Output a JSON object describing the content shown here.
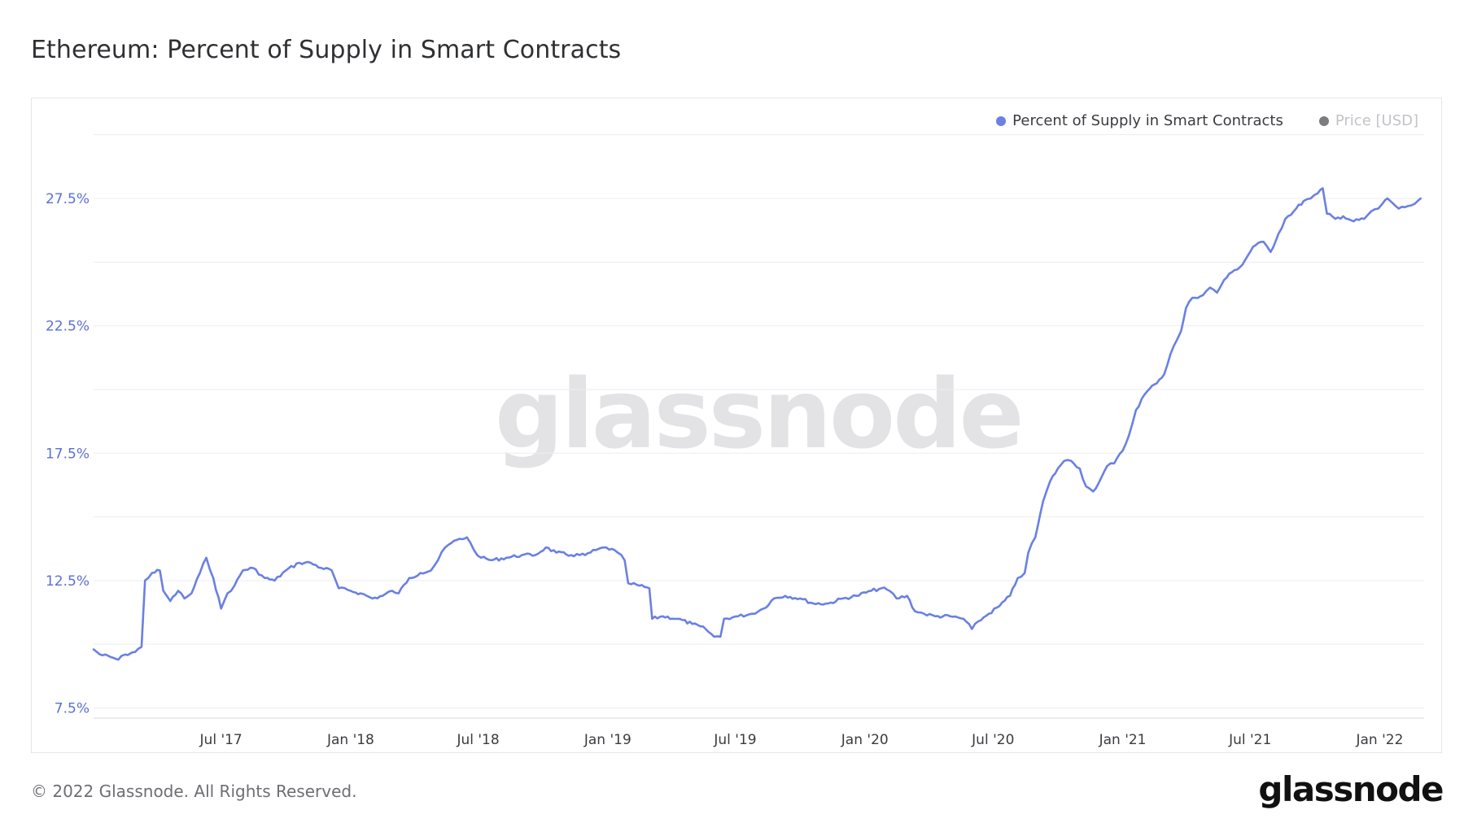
{
  "title": "Ethereum: Percent of Supply in Smart Contracts",
  "legend": {
    "series_a": "Percent of Supply in Smart Contracts",
    "series_b": "Price [USD]"
  },
  "colors": {
    "series_a": "#6a80e2",
    "series_b": "#7c7c80",
    "grid": "#ededf0"
  },
  "footer": "© 2022 Glassnode. All Rights Reserved.",
  "brand": "glassnode",
  "watermark": "glassnode",
  "chart_data": {
    "type": "line",
    "title": "Ethereum: Percent of Supply in Smart Contracts",
    "xlabel": "",
    "ylabel": "",
    "y_ticks": [
      "7.5%",
      "12.5%",
      "17.5%",
      "22.5%",
      "27.5%"
    ],
    "x_ticks": [
      "Jul '17",
      "Jan '18",
      "Jul '18",
      "Jan '19",
      "Jul '19",
      "Jan '20",
      "Jul '20",
      "Jan '21",
      "Jul '21",
      "Jan '22"
    ],
    "ylim": [
      7.2,
      30.5
    ],
    "xlim": [
      "2017-01-01",
      "2022-03-05"
    ],
    "grid": true,
    "legend_position": "top-right",
    "series": [
      {
        "name": "Percent of Supply in Smart Contracts",
        "color": "#6a80e2",
        "points": [
          [
            "2017-01-01",
            9.8
          ],
          [
            "2017-01-10",
            9.6
          ],
          [
            "2017-01-25",
            9.5
          ],
          [
            "2017-02-05",
            9.4
          ],
          [
            "2017-02-15",
            9.6
          ],
          [
            "2017-03-01",
            9.7
          ],
          [
            "2017-03-10",
            9.9
          ],
          [
            "2017-03-15",
            12.5
          ],
          [
            "2017-03-25",
            12.8
          ],
          [
            "2017-04-05",
            12.9
          ],
          [
            "2017-04-10",
            12.1
          ],
          [
            "2017-04-20",
            11.7
          ],
          [
            "2017-05-01",
            12.1
          ],
          [
            "2017-05-10",
            11.8
          ],
          [
            "2017-05-20",
            12.0
          ],
          [
            "2017-06-01",
            12.8
          ],
          [
            "2017-06-10",
            13.4
          ],
          [
            "2017-06-20",
            12.6
          ],
          [
            "2017-07-01",
            11.4
          ],
          [
            "2017-07-10",
            12.0
          ],
          [
            "2017-07-20",
            12.3
          ],
          [
            "2017-08-01",
            12.9
          ],
          [
            "2017-08-15",
            13.0
          ],
          [
            "2017-09-01",
            12.6
          ],
          [
            "2017-09-15",
            12.5
          ],
          [
            "2017-10-01",
            12.9
          ],
          [
            "2017-10-20",
            13.2
          ],
          [
            "2017-11-05",
            13.2
          ],
          [
            "2017-11-20",
            13.0
          ],
          [
            "2017-12-05",
            12.9
          ],
          [
            "2017-12-15",
            12.2
          ],
          [
            "2018-01-01",
            12.1
          ],
          [
            "2018-01-15",
            12.0
          ],
          [
            "2018-02-01",
            11.8
          ],
          [
            "2018-02-15",
            11.9
          ],
          [
            "2018-03-01",
            12.1
          ],
          [
            "2018-03-10",
            12.0
          ],
          [
            "2018-03-25",
            12.6
          ],
          [
            "2018-04-10",
            12.8
          ],
          [
            "2018-04-25",
            12.9
          ],
          [
            "2018-05-05",
            13.3
          ],
          [
            "2018-05-15",
            13.8
          ],
          [
            "2018-06-01",
            14.1
          ],
          [
            "2018-06-15",
            14.2
          ],
          [
            "2018-06-25",
            13.7
          ],
          [
            "2018-07-05",
            13.4
          ],
          [
            "2018-07-20",
            13.3
          ],
          [
            "2018-08-10",
            13.4
          ],
          [
            "2018-09-01",
            13.5
          ],
          [
            "2018-09-20",
            13.5
          ],
          [
            "2018-10-05",
            13.8
          ],
          [
            "2018-10-20",
            13.6
          ],
          [
            "2018-11-10",
            13.5
          ],
          [
            "2018-11-30",
            13.5
          ],
          [
            "2018-12-15",
            13.7
          ],
          [
            "2018-12-30",
            13.8
          ],
          [
            "2019-01-15",
            13.6
          ],
          [
            "2019-01-25",
            13.3
          ],
          [
            "2019-01-30",
            12.4
          ],
          [
            "2019-02-15",
            12.3
          ],
          [
            "2019-03-01",
            12.2
          ],
          [
            "2019-03-05",
            11.0
          ],
          [
            "2019-03-20",
            11.1
          ],
          [
            "2019-04-10",
            11.0
          ],
          [
            "2019-05-01",
            10.8
          ],
          [
            "2019-05-20",
            10.6
          ],
          [
            "2019-06-01",
            10.3
          ],
          [
            "2019-06-10",
            10.3
          ],
          [
            "2019-06-15",
            11.0
          ],
          [
            "2019-07-05",
            11.1
          ],
          [
            "2019-07-25",
            11.2
          ],
          [
            "2019-08-10",
            11.4
          ],
          [
            "2019-08-25",
            11.8
          ],
          [
            "2019-09-10",
            11.9
          ],
          [
            "2019-10-01",
            11.8
          ],
          [
            "2019-10-20",
            11.6
          ],
          [
            "2019-11-10",
            11.6
          ],
          [
            "2019-12-01",
            11.8
          ],
          [
            "2019-12-20",
            11.9
          ],
          [
            "2020-01-10",
            12.1
          ],
          [
            "2020-01-25",
            12.2
          ],
          [
            "2020-02-05",
            12.1
          ],
          [
            "2020-02-15",
            11.8
          ],
          [
            "2020-03-01",
            11.9
          ],
          [
            "2020-03-12",
            11.3
          ],
          [
            "2020-03-25",
            11.2
          ],
          [
            "2020-04-10",
            11.1
          ],
          [
            "2020-05-01",
            11.1
          ],
          [
            "2020-05-20",
            11.0
          ],
          [
            "2020-06-01",
            10.6
          ],
          [
            "2020-06-10",
            10.9
          ],
          [
            "2020-06-25",
            11.2
          ],
          [
            "2020-07-10",
            11.5
          ],
          [
            "2020-07-25",
            11.9
          ],
          [
            "2020-08-05",
            12.6
          ],
          [
            "2020-08-15",
            12.8
          ],
          [
            "2020-08-20",
            13.6
          ],
          [
            "2020-08-30",
            14.2
          ],
          [
            "2020-09-10",
            15.6
          ],
          [
            "2020-09-20",
            16.4
          ],
          [
            "2020-10-01",
            16.9
          ],
          [
            "2020-10-10",
            17.2
          ],
          [
            "2020-10-20",
            17.2
          ],
          [
            "2020-11-01",
            16.9
          ],
          [
            "2020-11-10",
            16.2
          ],
          [
            "2020-11-20",
            16.0
          ],
          [
            "2020-12-01",
            16.5
          ],
          [
            "2020-12-10",
            17.0
          ],
          [
            "2020-12-20",
            17.1
          ],
          [
            "2021-01-01",
            17.6
          ],
          [
            "2021-01-10",
            18.2
          ],
          [
            "2021-01-20",
            19.2
          ],
          [
            "2021-02-01",
            19.8
          ],
          [
            "2021-02-15",
            20.2
          ],
          [
            "2021-03-01",
            20.6
          ],
          [
            "2021-03-10",
            21.4
          ],
          [
            "2021-03-20",
            22.0
          ],
          [
            "2021-03-25",
            22.3
          ],
          [
            "2021-04-01",
            23.2
          ],
          [
            "2021-04-10",
            23.6
          ],
          [
            "2021-04-25",
            23.7
          ],
          [
            "2021-05-05",
            24.0
          ],
          [
            "2021-05-15",
            23.8
          ],
          [
            "2021-05-25",
            24.3
          ],
          [
            "2021-06-05",
            24.6
          ],
          [
            "2021-06-20",
            24.9
          ],
          [
            "2021-07-05",
            25.6
          ],
          [
            "2021-07-20",
            25.8
          ],
          [
            "2021-07-30",
            25.4
          ],
          [
            "2021-08-10",
            26.1
          ],
          [
            "2021-08-20",
            26.7
          ],
          [
            "2021-09-01",
            27.0
          ],
          [
            "2021-09-15",
            27.4
          ],
          [
            "2021-09-25",
            27.5
          ],
          [
            "2021-10-05",
            27.7
          ],
          [
            "2021-10-12",
            27.9
          ],
          [
            "2021-10-18",
            26.9
          ],
          [
            "2021-10-30",
            26.7
          ],
          [
            "2021-11-10",
            26.8
          ],
          [
            "2021-11-25",
            26.6
          ],
          [
            "2021-12-10",
            26.7
          ],
          [
            "2021-12-20",
            27.0
          ],
          [
            "2021-12-30",
            27.1
          ],
          [
            "2022-01-05",
            27.3
          ],
          [
            "2022-01-12",
            27.5
          ],
          [
            "2022-01-20",
            27.3
          ],
          [
            "2022-01-28",
            27.1
          ],
          [
            "2022-02-10",
            27.2
          ],
          [
            "2022-02-20",
            27.3
          ],
          [
            "2022-02-28",
            27.5
          ]
        ]
      },
      {
        "name": "Price [USD]",
        "color": "#7c7c80",
        "points": []
      }
    ]
  }
}
